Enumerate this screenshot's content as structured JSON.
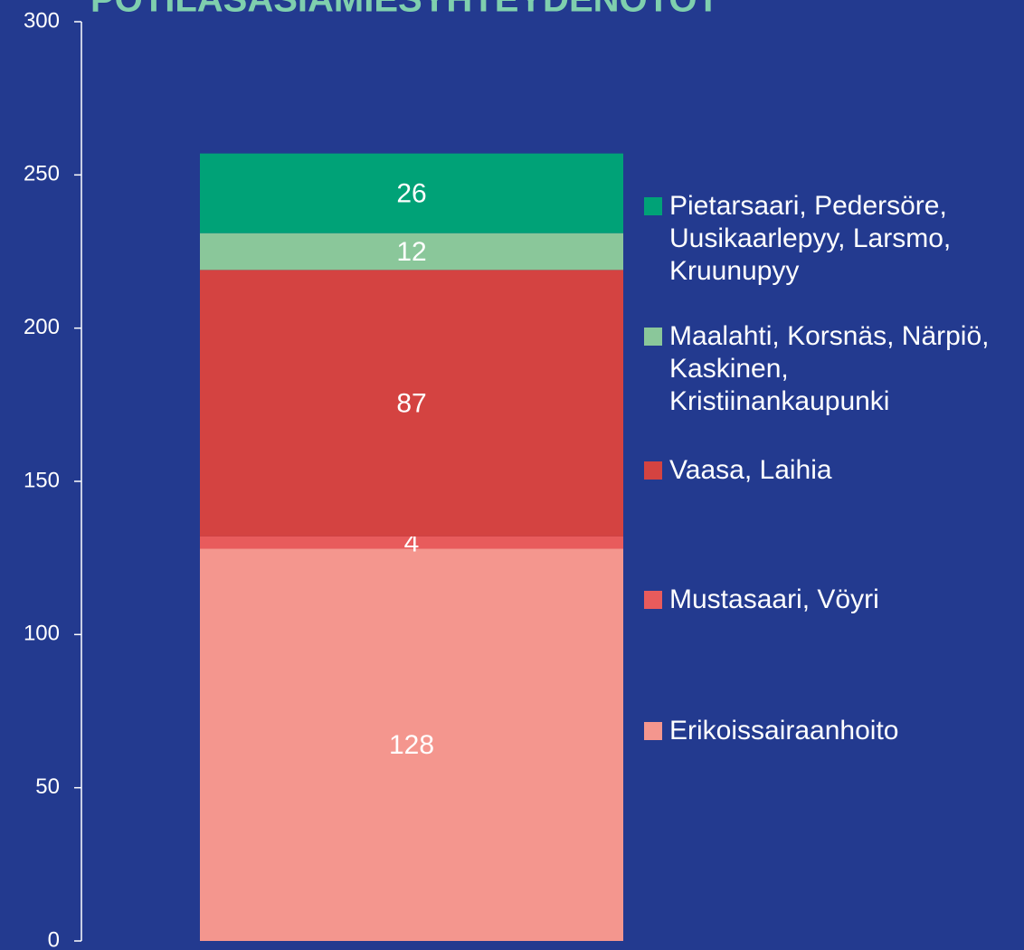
{
  "chart_data": {
    "type": "stacked_bar",
    "title": "POTILASASIAMIESYHTEYDENOTOT",
    "categories": [
      null
    ],
    "series": [
      {
        "name": "Erikoissairaanhoito",
        "color": "#f4968e",
        "values": [
          128
        ]
      },
      {
        "name": "Mustasaari, Vöyri",
        "color": "#e85b5c",
        "values": [
          4
        ]
      },
      {
        "name": "Vaasa, Laihia",
        "color": "#d44341",
        "values": [
          87
        ]
      },
      {
        "name": "Maalahti, Korsnäs, Närpiö, Kaskinen, Kristiinankaupunki",
        "color": "#8ac79a",
        "values": [
          12
        ]
      },
      {
        "name": "Pietarsaari, Pedersöre, Uusikaarlepyy, Larsmo, Kruunupyy",
        "color": "#00a277",
        "values": [
          26
        ]
      }
    ],
    "ylim": [
      0,
      300
    ],
    "yticks": [
      0,
      50,
      100,
      150,
      200,
      250,
      300
    ],
    "grid": false,
    "legend": "right"
  }
}
